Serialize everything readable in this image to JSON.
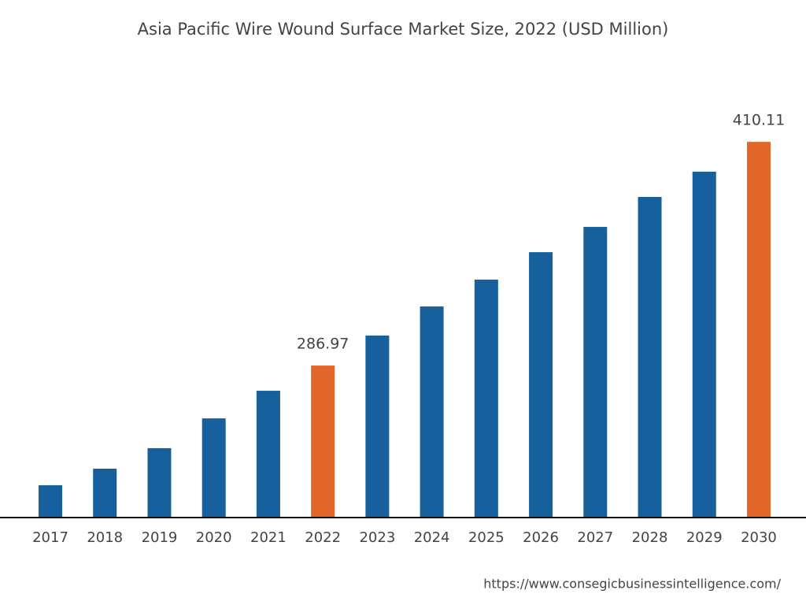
{
  "chart_data": {
    "type": "bar",
    "title": "Asia Pacific Wire Wound Surface Market Size, 2022 (USD Million)",
    "categories": [
      "2017",
      "2018",
      "2019",
      "2020",
      "2021",
      "2022",
      "2023",
      "2024",
      "2025",
      "2026",
      "2027",
      "2028",
      "2029",
      "2030"
    ],
    "values": [
      221.1,
      230.2,
      241.5,
      257.9,
      273.1,
      286.97,
      303.5,
      319.5,
      334.3,
      349.4,
      363.3,
      379.8,
      393.7,
      410.11
    ],
    "color": "#17609e",
    "highlight_color": "#e2662a",
    "highlighted_categories": [
      "2022",
      "2030"
    ],
    "ylim": [
      203.3,
      420
    ],
    "source": "https://www.consegicbusinessintelligence.com/"
  }
}
